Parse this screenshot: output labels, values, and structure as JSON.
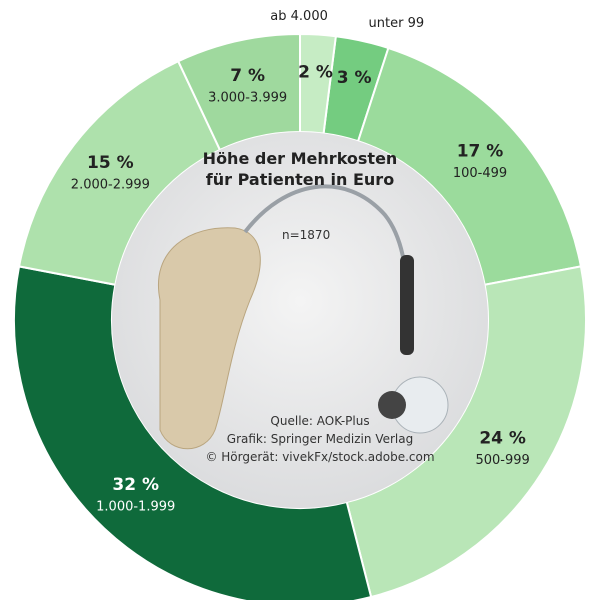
{
  "chart_data": {
    "type": "donut",
    "title": "Höhe der Mehrkosten für Patienten in Euro",
    "annotations": [
      "n=1870",
      "Quelle: AOK-Plus",
      "Grafik: Springer Medizin Verlag",
      "© Hörgerät: vivekFx/stock.adobe.com"
    ],
    "categories": [
      "unter 99",
      "100-499",
      "500-999",
      "1.000-1.999",
      "2.000-2.999",
      "3.000-3.999",
      "ab 4.000"
    ],
    "values": [
      3,
      17,
      24,
      32,
      15,
      7,
      2
    ],
    "value_labels": [
      "3 %",
      "17 %",
      "24 %",
      "32 %",
      "15 %",
      "7 %",
      "2 %"
    ],
    "colors": [
      "#74cc80",
      "#9bdb9c",
      "#b9e6b7",
      "#0f6a3b",
      "#aee1ac",
      "#9fd99e",
      "#c6ecc4"
    ]
  }
}
